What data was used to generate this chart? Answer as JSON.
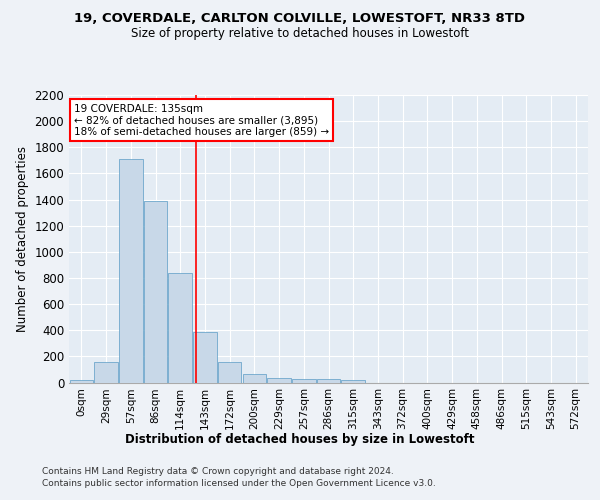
{
  "title1": "19, COVERDALE, CARLTON COLVILLE, LOWESTOFT, NR33 8TD",
  "title2": "Size of property relative to detached houses in Lowestoft",
  "xlabel": "Distribution of detached houses by size in Lowestoft",
  "ylabel": "Number of detached properties",
  "bin_labels": [
    "0sqm",
    "29sqm",
    "57sqm",
    "86sqm",
    "114sqm",
    "143sqm",
    "172sqm",
    "200sqm",
    "229sqm",
    "257sqm",
    "286sqm",
    "315sqm",
    "343sqm",
    "372sqm",
    "400sqm",
    "429sqm",
    "458sqm",
    "486sqm",
    "515sqm",
    "543sqm",
    "572sqm"
  ],
  "bar_heights": [
    20,
    155,
    1710,
    1390,
    835,
    385,
    160,
    65,
    35,
    30,
    30,
    20,
    0,
    0,
    0,
    0,
    0,
    0,
    0,
    0,
    0
  ],
  "bar_color": "#c8d8e8",
  "bar_edge_color": "#5a9cc5",
  "ylim": [
    0,
    2200
  ],
  "yticks": [
    0,
    200,
    400,
    600,
    800,
    1000,
    1200,
    1400,
    1600,
    1800,
    2000,
    2200
  ],
  "red_line_x": 4.655,
  "annotation_text": "19 COVERDALE: 135sqm\n← 82% of detached houses are smaller (3,895)\n18% of semi-detached houses are larger (859) →",
  "footer1": "Contains HM Land Registry data © Crown copyright and database right 2024.",
  "footer2": "Contains public sector information licensed under the Open Government Licence v3.0.",
  "bg_color": "#eef2f7",
  "plot_bg_color": "#e4ecf4"
}
